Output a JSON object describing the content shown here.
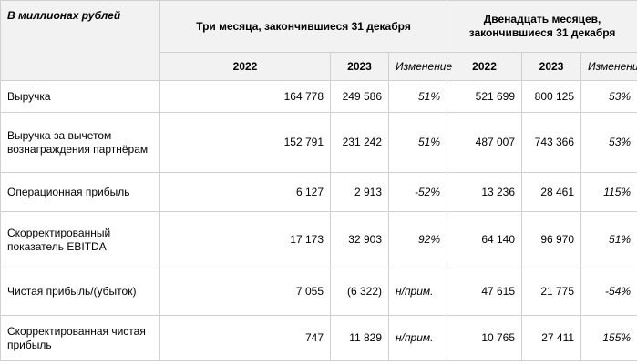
{
  "header": {
    "unit_label": "В миллионах рублей",
    "group_q": "Три месяца, закончившиеся 31 декабря",
    "group_y": "Двенадцать месяцев, закончившиеся 31 декабря",
    "years": {
      "q1": "2022",
      "q2": "2023",
      "y1": "2022",
      "y2": "2023"
    },
    "change_label": "Изменение"
  },
  "rows": [
    {
      "label": "Выручка",
      "q1": "164 778",
      "q2": "249 586",
      "qc": "51%",
      "y1": "521 699",
      "y2": "800 125",
      "yc": "53%"
    },
    {
      "label": "Выручка за вычетом вознаграждения партнёрам",
      "q1": "152 791",
      "q2": "231 242",
      "qc": "51%",
      "y1": "487 007",
      "y2": "743 366",
      "yc": "53%"
    },
    {
      "label": "Операционная прибыль",
      "q1": "6 127",
      "q2": "2 913",
      "qc": "-52%",
      "y1": "13 236",
      "y2": "28 461",
      "yc": "115%"
    },
    {
      "label": "Скорректированный показатель EBITDA",
      "q1": "17 173",
      "q2": "32 903",
      "qc": "92%",
      "y1": "64 140",
      "y2": "96 970",
      "yc": "51%"
    },
    {
      "label": "Чистая прибыль/(убыток)",
      "q1": "7 055",
      "q2": "(6 322)",
      "qc": "н/прим.",
      "y1": "47 615",
      "y2": "21 775",
      "yc": "-54%"
    },
    {
      "label": "Скорректированная чистая прибыль",
      "q1": "747",
      "q2": "11 829",
      "qc": "н/прим.",
      "y1": "10 765",
      "y2": "27 411",
      "yc": "155%"
    }
  ]
}
